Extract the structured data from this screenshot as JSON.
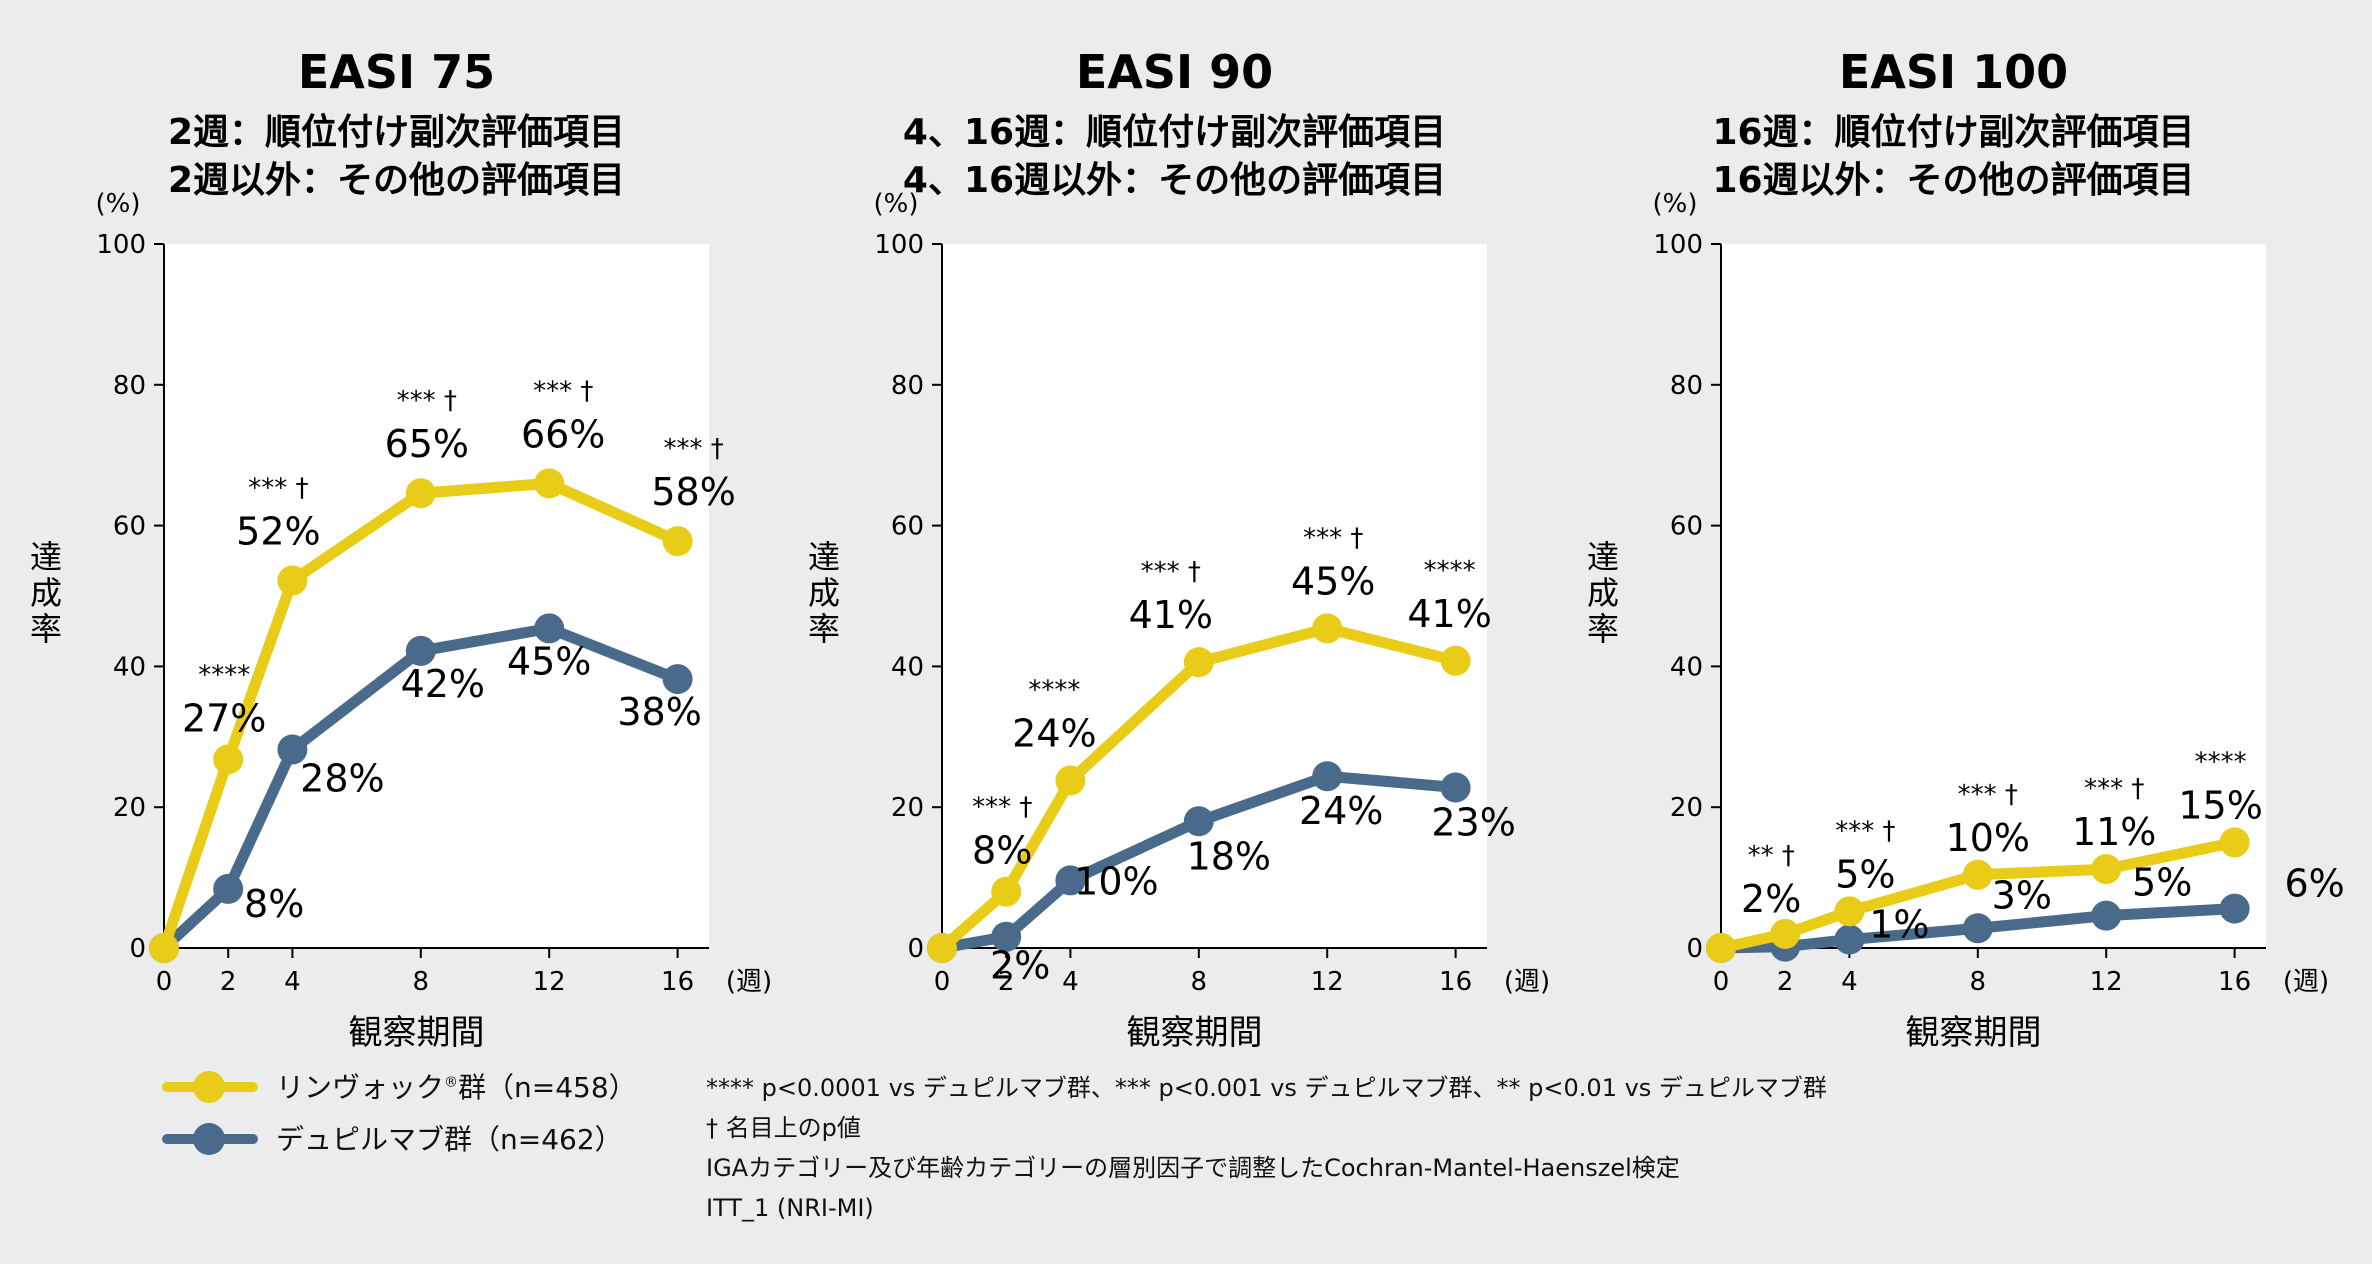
{
  "colors": {
    "rinvoq": "#e8cc17",
    "dupixent": "#4a6a8c",
    "plot_bg": "#ffffff",
    "page_bg": "#ececec"
  },
  "axis": {
    "unit": "(%)",
    "ylabel": "達成率",
    "xlabel": "観察期間",
    "xunit": "(週)"
  },
  "chart_data": [
    {
      "type": "line",
      "title": "EASI 75",
      "subtitle1": "2週：順位付け副次評価項目",
      "subtitle2": "2週以外：その他の評価項目",
      "x": [
        0,
        2,
        4,
        8,
        12,
        16
      ],
      "xticks": [
        "0",
        "2",
        "4",
        "8",
        "12",
        "16"
      ],
      "ylim": [
        0,
        100
      ],
      "yticks": [
        "0",
        "20",
        "40",
        "60",
        "80",
        "100"
      ],
      "series": [
        {
          "name": "リンヴォック群",
          "values": [
            0,
            26.8,
            52.2,
            64.6,
            66.0,
            57.8
          ],
          "labels": [
            "",
            "27%",
            "52%",
            "65%",
            "66%",
            "58%"
          ],
          "sig": [
            "",
            "****",
            "*** †",
            "*** †",
            "*** †",
            "*** †"
          ]
        },
        {
          "name": "デュピルマブ群",
          "values": [
            0,
            8.4,
            28.2,
            42.2,
            45.4,
            38.2
          ],
          "labels": [
            "",
            "8%",
            "28%",
            "42%",
            "45%",
            "38%"
          ]
        }
      ]
    },
    {
      "type": "line",
      "title": "EASI 90",
      "subtitle1": "4、16週：順位付け副次評価項目",
      "subtitle2": "4、16週以外：その他の評価項目",
      "x": [
        0,
        2,
        4,
        8,
        12,
        16
      ],
      "xticks": [
        "0",
        "2",
        "4",
        "8",
        "12",
        "16"
      ],
      "ylim": [
        0,
        100
      ],
      "yticks": [
        "0",
        "20",
        "40",
        "60",
        "80",
        "100"
      ],
      "series": [
        {
          "name": "リンヴォック群",
          "values": [
            0,
            8.0,
            23.8,
            40.6,
            45.4,
            40.8
          ],
          "labels": [
            "",
            "8%",
            "24%",
            "41%",
            "45%",
            "41%"
          ],
          "sig": [
            "",
            "*** †",
            "****",
            "*** †",
            "*** †",
            "****"
          ]
        },
        {
          "name": "デュピルマブ群",
          "values": [
            0,
            1.6,
            9.6,
            18.0,
            24.4,
            22.8
          ],
          "labels": [
            "",
            "2%",
            "10%",
            "18%",
            "24%",
            "23%"
          ]
        }
      ]
    },
    {
      "type": "line",
      "title": "EASI 100",
      "subtitle1": "16週：順位付け副次評価項目",
      "subtitle2": "16週以外：その他の評価項目",
      "x": [
        0,
        2,
        4,
        8,
        12,
        16
      ],
      "xticks": [
        "0",
        "2",
        "4",
        "8",
        "12",
        "16"
      ],
      "ylim": [
        0,
        100
      ],
      "yticks": [
        "0",
        "20",
        "40",
        "60",
        "80",
        "100"
      ],
      "series": [
        {
          "name": "リンヴォック群",
          "values": [
            0,
            2.0,
            5.2,
            10.4,
            11.2,
            15.0
          ],
          "labels": [
            "",
            "2%",
            "5%",
            "10%",
            "11%",
            "15%"
          ],
          "sig": [
            "",
            "** †",
            "*** †",
            "*** †",
            "*** †",
            "****"
          ]
        },
        {
          "name": "デュピルマブ群",
          "values": [
            0,
            0.2,
            1.2,
            2.8,
            4.6,
            5.6
          ],
          "labels": [
            "",
            "",
            "1%",
            "3%",
            "5%",
            "6%"
          ]
        }
      ]
    }
  ],
  "legend": {
    "rinvoq_label": "リンヴォック",
    "rinvoq_reg": "®",
    "rinvoq_suffix": "群（n=458）",
    "dupixent_label": "デュピルマブ群（n=462）"
  },
  "footnotes": [
    "**** p<0.0001 vs デュピルマブ群、*** p<0.001 vs デュピルマブ群、** p<0.01 vs デュピルマブ群",
    "† 名目上のp値",
    "IGAカテゴリー及び年齢カテゴリーの層別因子で調整したCochran-Mantel-Haenszel検定",
    "ITT_1 (NRI-MI)"
  ]
}
